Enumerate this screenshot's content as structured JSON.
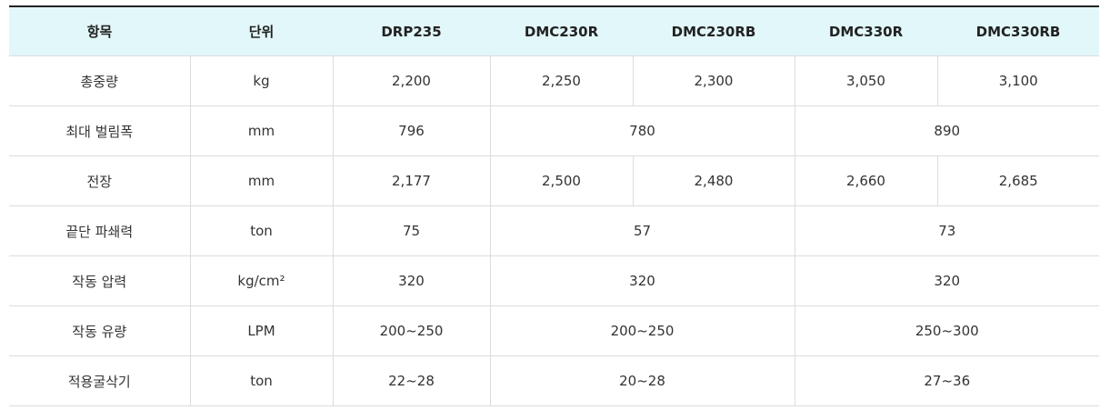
{
  "headers": [
    "항목",
    "단위",
    "DRP235",
    "DMC230R",
    "DMC230RB",
    "DMC330R",
    "DMC330RB"
  ],
  "rows": [
    {
      "item": "총중량",
      "unit": "kg",
      "values": [
        "2,200",
        "2,250",
        "2,300",
        "3,050",
        "3,100"
      ]
    },
    {
      "item": "최대 벌림폭",
      "unit": "mm",
      "values": [
        "796",
        "780",
        "890"
      ]
    },
    {
      "item": "전장",
      "unit": "mm",
      "values": [
        "2,177",
        "2,500",
        "2,480",
        "2,660",
        "2,685"
      ]
    },
    {
      "item": "끝단 파쇄력",
      "unit": "ton",
      "values": [
        "75",
        "57",
        "73"
      ]
    },
    {
      "item": "작동 압력",
      "unit": "kg/cm²",
      "values": [
        "320",
        "320",
        "320"
      ]
    },
    {
      "item": "작동 유량",
      "unit": "LPM",
      "values": [
        "200~250",
        "200~250",
        "250~300"
      ]
    },
    {
      "item": "적용굴삭기",
      "unit": "ton",
      "values": [
        "22~28",
        "20~28",
        "27~36"
      ]
    }
  ]
}
